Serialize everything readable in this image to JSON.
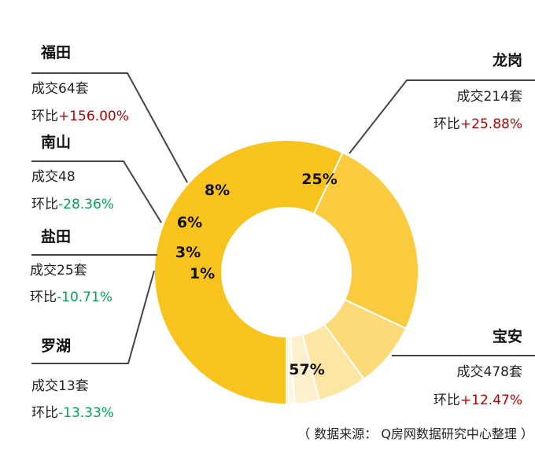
{
  "chart_data": {
    "type": "pie",
    "variant": "donut",
    "colors": {
      "baoan": "#F9C31D",
      "longgang": "#FACB3E",
      "futian": "#FCDA78",
      "nanshan": "#FDE6A3",
      "yantian": "#FEF0CC",
      "luohu": "#FFF7E4",
      "increase": "#C00000",
      "decrease": "#00A651"
    },
    "slices": [
      {
        "key": "baoan",
        "name": "宝安",
        "percent": 57,
        "percent_label": "57%",
        "deals": "成交478套",
        "change_label": "环比",
        "change": "+12.47%"
      },
      {
        "key": "longgang",
        "name": "龙岗",
        "percent": 25,
        "percent_label": "25%",
        "deals": "成交214套",
        "change_label": "环比",
        "change": "+25.88%"
      },
      {
        "key": "futian",
        "name": "福田",
        "percent": 8,
        "percent_label": "8%",
        "deals": "成交64套",
        "change_label": "环比",
        "change": "+156.00%"
      },
      {
        "key": "nanshan",
        "name": "南山",
        "percent": 6,
        "percent_label": "6%",
        "deals": "成交48",
        "change_label": "环比",
        "change": "-28.36%"
      },
      {
        "key": "yantian",
        "name": "盐田",
        "percent": 3,
        "percent_label": "3%",
        "deals": "成交25套",
        "change_label": "环比",
        "change": "-10.71%"
      },
      {
        "key": "luohu",
        "name": "罗湖",
        "percent": 1,
        "percent_label": "1%",
        "deals": "成交13套",
        "change_label": "环比",
        "change": "-13.33%"
      }
    ]
  },
  "source_note": "（ 数据来源： Q房网数据研究中心整理 ）"
}
